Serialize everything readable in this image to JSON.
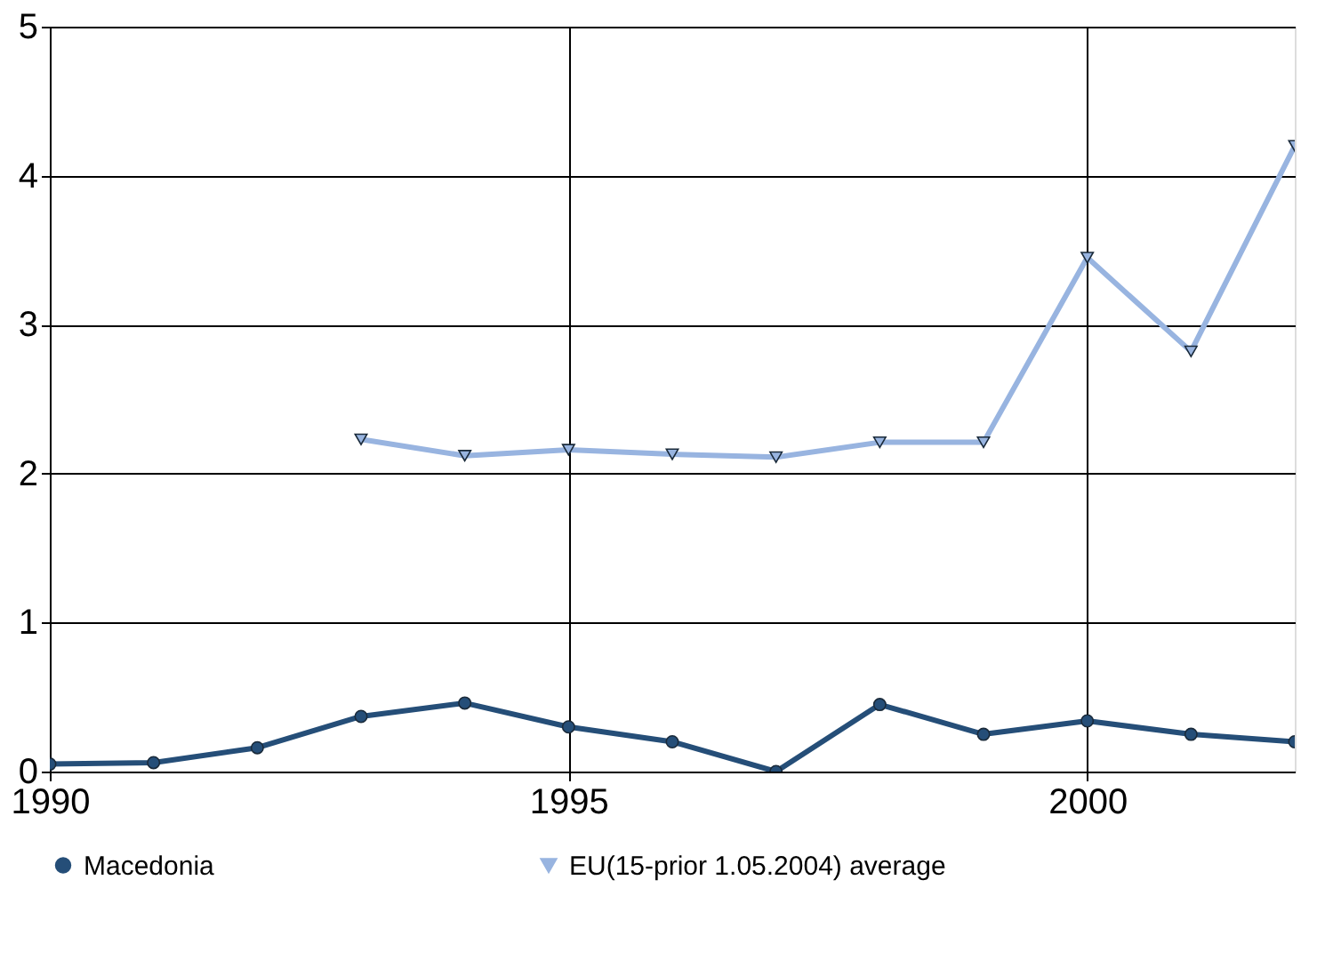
{
  "chart_data": {
    "type": "line",
    "x": [
      1990,
      1991,
      1992,
      1993,
      1994,
      1995,
      1996,
      1997,
      1998,
      1999,
      2000,
      2001,
      2002
    ],
    "series": [
      {
        "name": "Macedonia",
        "color": "#254e78",
        "marker": "circle",
        "values": [
          0.05,
          0.06,
          0.16,
          0.37,
          0.46,
          0.3,
          0.2,
          0.0,
          0.45,
          0.25,
          0.34,
          0.25,
          0.2
        ]
      },
      {
        "name": "EU(15-prior 1.05.2004) average",
        "color": "#98b4e0",
        "marker": "triangle",
        "values": [
          null,
          null,
          null,
          2.23,
          2.12,
          2.16,
          2.13,
          2.11,
          2.21,
          2.21,
          3.45,
          2.82,
          4.2
        ]
      }
    ],
    "xlim": [
      1990,
      2002
    ],
    "xticks": [
      1990,
      1995,
      2000
    ],
    "ylim": [
      0,
      5
    ],
    "yticks": [
      0,
      1,
      2,
      3,
      4,
      5
    ],
    "grid": true,
    "legend": "bottom",
    "line_style": "solid"
  }
}
